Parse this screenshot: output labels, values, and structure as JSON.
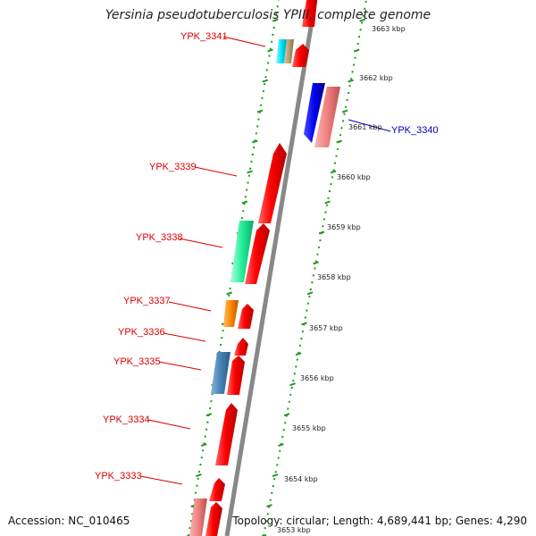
{
  "title": "Yersinia pseudotuberculosis YPIII, complete genome",
  "accession": "Accession: NC_010465",
  "summary": "Topology: circular; Length: 4,689,441 bp; Genes: 4,290",
  "ticks": [
    {
      "label": "3663 kbp"
    },
    {
      "label": "3662 kbp"
    },
    {
      "label": "3661 kbp"
    },
    {
      "label": "3660 kbp"
    },
    {
      "label": "3659 kbp"
    },
    {
      "label": "3658 kbp"
    },
    {
      "label": "3657 kbp"
    },
    {
      "label": "3656 kbp"
    },
    {
      "label": "3655 kbp"
    },
    {
      "label": "3654 kbp"
    },
    {
      "label": "3653 kbp"
    }
  ],
  "gene_labels": [
    {
      "text": "YPK_3341",
      "color": "#dd0000"
    },
    {
      "text": "YPK_3340",
      "color": "#0000bb"
    },
    {
      "text": "YPK_3339",
      "color": "#dd0000"
    },
    {
      "text": "YPK_3338",
      "color": "#dd0000"
    },
    {
      "text": "YPK_3337",
      "color": "#dd0000"
    },
    {
      "text": "YPK_3336",
      "color": "#dd0000"
    },
    {
      "text": "YPK_3335",
      "color": "#dd0000"
    },
    {
      "text": "YPK_3334",
      "color": "#dd0000"
    },
    {
      "text": "YPK_3333",
      "color": "#dd0000"
    }
  ],
  "colors": {
    "forward_gene": "#ff0000",
    "highlight_blue": "#0000ee",
    "pink_gene": "#f08080",
    "teal_gene": "#22ee99",
    "orange_gene": "#ff8800",
    "steel_gene": "#4682b4",
    "cyan_gene": "#00e5ff",
    "olive_gene": "#b8a070",
    "backbone": "#888888",
    "dots": "#229922"
  }
}
